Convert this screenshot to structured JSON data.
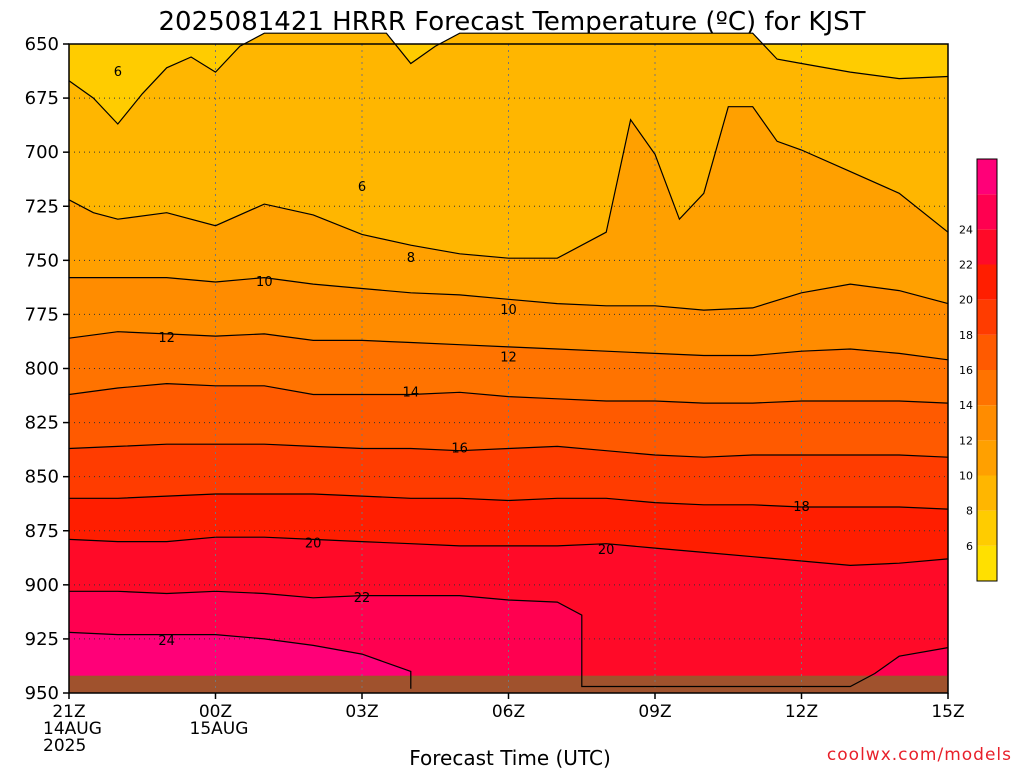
{
  "chart_data": {
    "type": "contour",
    "title": "2025081421 HRRR Forecast Temperature (ºC) for KJST",
    "xlabel": "Forecast Time (UTC)",
    "credit": "coolwx.com/models",
    "y_axis": {
      "quantity": "pressure (hPa)",
      "range": [
        950,
        650
      ],
      "ticks": [
        "650",
        "675",
        "700",
        "725",
        "750",
        "775",
        "800",
        "825",
        "850",
        "875",
        "900",
        "925",
        "950"
      ]
    },
    "x_axis": {
      "range_hours": [
        21,
        39
      ],
      "ticks": [
        {
          "line1": "21Z",
          "line2": "14AUG",
          "line3": "2025"
        },
        {
          "line1": "00Z",
          "line2": "15AUG",
          "line3": ""
        },
        {
          "line1": "03Z",
          "line2": "",
          "line3": ""
        },
        {
          "line1": "06Z",
          "line2": "",
          "line3": ""
        },
        {
          "line1": "09Z",
          "line2": "",
          "line3": ""
        },
        {
          "line1": "12Z",
          "line2": "",
          "line3": ""
        },
        {
          "line1": "15Z",
          "line2": "",
          "line3": ""
        }
      ]
    },
    "grid": "dotted",
    "colorbar": {
      "placement": "right",
      "min": 4,
      "max": 26,
      "step": 2,
      "labels": [
        "6",
        "8",
        "10",
        "12",
        "14",
        "16",
        "18",
        "20",
        "22",
        "24"
      ],
      "colors": [
        "#ffe000",
        "#ffcc00",
        "#ffb600",
        "#ffa000",
        "#ff8c00",
        "#ff7300",
        "#ff5a00",
        "#ff3c00",
        "#ff1e00",
        "#ff0a28",
        "#ff0050",
        "#ff0078"
      ]
    },
    "contour_labels": [
      {
        "value": "6",
        "x_hour": 22.0,
        "p": 663
      },
      {
        "value": "6",
        "x_hour": 27.0,
        "p": 716
      },
      {
        "value": "8",
        "x_hour": 28.0,
        "p": 749
      },
      {
        "value": "10",
        "x_hour": 25.0,
        "p": 760
      },
      {
        "value": "10",
        "x_hour": 30.0,
        "p": 773
      },
      {
        "value": "12",
        "x_hour": 23.0,
        "p": 786
      },
      {
        "value": "12",
        "x_hour": 30.0,
        "p": 795
      },
      {
        "value": "14",
        "x_hour": 28.0,
        "p": 811
      },
      {
        "value": "16",
        "x_hour": 29.0,
        "p": 837
      },
      {
        "value": "18",
        "x_hour": 36.0,
        "p": 864
      },
      {
        "value": "20",
        "x_hour": 26.0,
        "p": 881
      },
      {
        "value": "20",
        "x_hour": 32.0,
        "p": 884
      },
      {
        "value": "22",
        "x_hour": 27.0,
        "p": 906
      },
      {
        "value": "24",
        "x_hour": 23.0,
        "p": 926
      }
    ],
    "isotherm_shapes": [
      {
        "value": 6,
        "level": [
          [
            21,
            667
          ],
          [
            21.5,
            675
          ],
          [
            22,
            687
          ],
          [
            22.5,
            673
          ],
          [
            23,
            661
          ],
          [
            23.5,
            656
          ],
          [
            24,
            663
          ],
          [
            24.5,
            651
          ],
          [
            25,
            645
          ],
          [
            27,
            645
          ],
          [
            27.5,
            645
          ],
          [
            28,
            659
          ],
          [
            28.5,
            651
          ],
          [
            29,
            645
          ],
          [
            35,
            645
          ],
          [
            35.5,
            657
          ],
          [
            36,
            659
          ],
          [
            37,
            663
          ],
          [
            38,
            666
          ],
          [
            39,
            665
          ]
        ]
      },
      {
        "value": 8,
        "level": [
          [
            21,
            722
          ],
          [
            21.5,
            728
          ],
          [
            22,
            731
          ],
          [
            23,
            728
          ],
          [
            24,
            734
          ],
          [
            25,
            724
          ],
          [
            26,
            729
          ],
          [
            27,
            738
          ],
          [
            28,
            743
          ],
          [
            29,
            747
          ],
          [
            30,
            749
          ],
          [
            31,
            749
          ],
          [
            32,
            737
          ],
          [
            32.5,
            685
          ],
          [
            33,
            701
          ],
          [
            33.5,
            731
          ],
          [
            34,
            719
          ],
          [
            34.5,
            679
          ],
          [
            35,
            679
          ],
          [
            35.5,
            695
          ],
          [
            36,
            699
          ],
          [
            37,
            709
          ],
          [
            38,
            719
          ],
          [
            39,
            737
          ]
        ]
      },
      {
        "value": 10,
        "level": [
          [
            21,
            758
          ],
          [
            22,
            758
          ],
          [
            23,
            758
          ],
          [
            24,
            760
          ],
          [
            25,
            758
          ],
          [
            26,
            761
          ],
          [
            27,
            763
          ],
          [
            28,
            765
          ],
          [
            29,
            766
          ],
          [
            30,
            768
          ],
          [
            31,
            770
          ],
          [
            32,
            771
          ],
          [
            33,
            771
          ],
          [
            34,
            773
          ],
          [
            35,
            772
          ],
          [
            36,
            765
          ],
          [
            37,
            761
          ],
          [
            38,
            764
          ],
          [
            39,
            770
          ]
        ]
      },
      {
        "value": 12,
        "level": [
          [
            21,
            786
          ],
          [
            22,
            783
          ],
          [
            23,
            784
          ],
          [
            24,
            785
          ],
          [
            25,
            784
          ],
          [
            26,
            787
          ],
          [
            27,
            787
          ],
          [
            28,
            788
          ],
          [
            29,
            789
          ],
          [
            30,
            790
          ],
          [
            31,
            791
          ],
          [
            32,
            792
          ],
          [
            33,
            793
          ],
          [
            34,
            794
          ],
          [
            35,
            794
          ],
          [
            36,
            792
          ],
          [
            37,
            791
          ],
          [
            38,
            793
          ],
          [
            39,
            796
          ]
        ]
      },
      {
        "value": 14,
        "level": [
          [
            21,
            812
          ],
          [
            22,
            809
          ],
          [
            23,
            807
          ],
          [
            24,
            808
          ],
          [
            25,
            808
          ],
          [
            26,
            812
          ],
          [
            27,
            812
          ],
          [
            28,
            812
          ],
          [
            29,
            811
          ],
          [
            30,
            813
          ],
          [
            31,
            814
          ],
          [
            32,
            815
          ],
          [
            33,
            815
          ],
          [
            34,
            816
          ],
          [
            35,
            816
          ],
          [
            36,
            815
          ],
          [
            37,
            815
          ],
          [
            38,
            815
          ],
          [
            39,
            816
          ]
        ]
      },
      {
        "value": 16,
        "level": [
          [
            21,
            837
          ],
          [
            22,
            836
          ],
          [
            23,
            835
          ],
          [
            24,
            835
          ],
          [
            25,
            835
          ],
          [
            26,
            836
          ],
          [
            27,
            837
          ],
          [
            28,
            837
          ],
          [
            29,
            838
          ],
          [
            30,
            837
          ],
          [
            31,
            836
          ],
          [
            32,
            838
          ],
          [
            33,
            840
          ],
          [
            34,
            841
          ],
          [
            35,
            840
          ],
          [
            36,
            840
          ],
          [
            37,
            840
          ],
          [
            38,
            840
          ],
          [
            39,
            841
          ]
        ]
      },
      {
        "value": 18,
        "level": [
          [
            21,
            860
          ],
          [
            22,
            860
          ],
          [
            23,
            859
          ],
          [
            24,
            858
          ],
          [
            25,
            858
          ],
          [
            26,
            858
          ],
          [
            27,
            859
          ],
          [
            28,
            860
          ],
          [
            29,
            860
          ],
          [
            30,
            861
          ],
          [
            31,
            860
          ],
          [
            32,
            860
          ],
          [
            33,
            862
          ],
          [
            34,
            863
          ],
          [
            35,
            863
          ],
          [
            36,
            864
          ],
          [
            37,
            864
          ],
          [
            38,
            864
          ],
          [
            39,
            865
          ]
        ]
      },
      {
        "value": 20,
        "level": [
          [
            21,
            879
          ],
          [
            22,
            880
          ],
          [
            23,
            880
          ],
          [
            24,
            878
          ],
          [
            25,
            878
          ],
          [
            26,
            879
          ],
          [
            27,
            880
          ],
          [
            28,
            881
          ],
          [
            29,
            882
          ],
          [
            30,
            882
          ],
          [
            31,
            882
          ],
          [
            32,
            881
          ],
          [
            33,
            883
          ],
          [
            34,
            885
          ],
          [
            35,
            887
          ],
          [
            36,
            889
          ],
          [
            37,
            891
          ],
          [
            38,
            890
          ],
          [
            39,
            888
          ]
        ]
      },
      {
        "value": 22,
        "level": [
          [
            21,
            903
          ],
          [
            22,
            903
          ],
          [
            23,
            904
          ],
          [
            24,
            903
          ],
          [
            25,
            904
          ],
          [
            26,
            906
          ],
          [
            27,
            905
          ],
          [
            28,
            905
          ],
          [
            29,
            905
          ],
          [
            30,
            907
          ],
          [
            31,
            908
          ],
          [
            31.5,
            914
          ],
          [
            31.5,
            947
          ],
          [
            33,
            947
          ],
          [
            36,
            947
          ],
          [
            37,
            947
          ],
          [
            37.5,
            941
          ],
          [
            38,
            933
          ],
          [
            39,
            929
          ]
        ]
      },
      {
        "value": 24,
        "level": [
          [
            21,
            922
          ],
          [
            22,
            923
          ],
          [
            23,
            923
          ],
          [
            24,
            923
          ],
          [
            25,
            925
          ],
          [
            26,
            928
          ],
          [
            27,
            932
          ],
          [
            28,
            940
          ],
          [
            28,
            948
          ]
        ]
      }
    ],
    "ground_top_p": 942
  }
}
